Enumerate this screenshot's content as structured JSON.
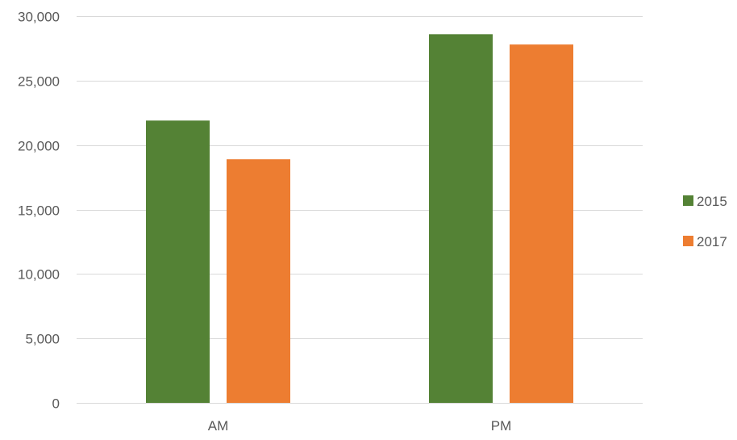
{
  "chart_data": {
    "type": "bar",
    "title": "",
    "xlabel": "",
    "ylabel": "",
    "categories": [
      "AM",
      "PM"
    ],
    "series": [
      {
        "name": "2015",
        "color": "#548235",
        "values": [
          21900,
          28600
        ]
      },
      {
        "name": "2017",
        "color": "#ED7D31",
        "values": [
          18900,
          27800
        ]
      }
    ],
    "ylim": [
      0,
      30000
    ],
    "yticks": [
      0,
      5000,
      10000,
      15000,
      20000,
      25000,
      30000
    ],
    "ytick_labels": [
      "0",
      "5,000",
      "10,000",
      "15,000",
      "20,000",
      "25,000",
      "30,000"
    ],
    "grid": true,
    "legend_position": "right",
    "colors": {
      "gridline": "#D9D9D9",
      "axis_text": "#595959"
    }
  }
}
